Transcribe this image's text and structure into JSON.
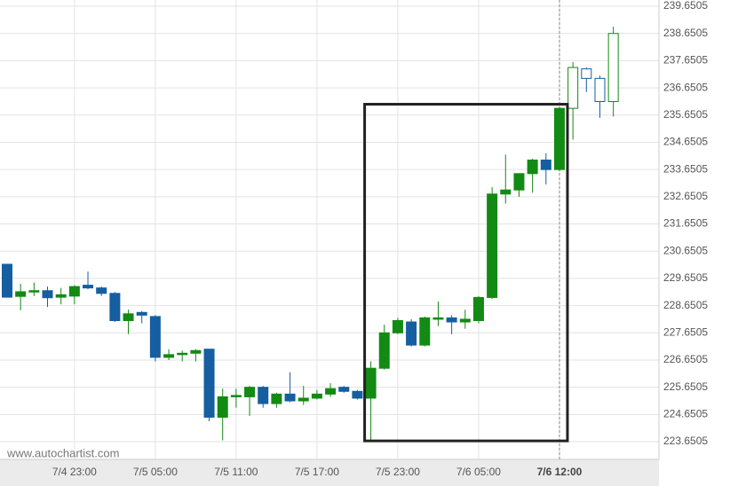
{
  "chart_data": {
    "type": "candlestick",
    "watermark": "www.autochartist.com",
    "categories": [
      null,
      null,
      null,
      null,
      null,
      "7/4 23:00",
      null,
      null,
      null,
      null,
      null,
      "7/5 05:00",
      null,
      null,
      null,
      null,
      null,
      "7/5 11:00",
      null,
      null,
      null,
      null,
      null,
      "7/5 17:00",
      null,
      null,
      null,
      null,
      null,
      "7/5 23:00",
      null,
      null,
      null,
      null,
      null,
      "7/6 05:00",
      null,
      null,
      null,
      null,
      null,
      "7/6 12:00",
      null,
      null,
      null,
      null
    ],
    "open": [
      230.17,
      228.99,
      229.15,
      229.2,
      228.96,
      229.0,
      229.4,
      229.3,
      229.1,
      228.1,
      228.4,
      228.25,
      226.75,
      226.85,
      226.9,
      227.05,
      224.55,
      225.3,
      225.3,
      225.65,
      225.05,
      225.4,
      225.15,
      225.25,
      225.4,
      225.65,
      225.5,
      225.25,
      226.35,
      227.65,
      228.05,
      227.2,
      228.15,
      228.2,
      228.05,
      228.1,
      228.95,
      232.75,
      232.9,
      233.5,
      234.0,
      233.65,
      235.9,
      237.35,
      237.0,
      236.15
    ],
    "high": [
      230.17,
      229.45,
      229.5,
      229.35,
      229.3,
      229.4,
      229.9,
      229.35,
      229.15,
      228.5,
      228.45,
      228.3,
      227.05,
      227.0,
      227.05,
      227.05,
      225.6,
      225.6,
      225.7,
      225.7,
      225.45,
      226.2,
      225.7,
      225.55,
      225.8,
      225.7,
      225.55,
      226.6,
      227.95,
      228.2,
      228.15,
      228.25,
      228.8,
      228.3,
      228.5,
      229.0,
      233.0,
      234.2,
      233.5,
      234.05,
      234.25,
      235.95,
      237.6,
      237.4,
      237.1,
      238.9
    ],
    "low": [
      228.96,
      228.48,
      229.0,
      228.6,
      228.7,
      228.7,
      229.25,
      229.0,
      228.05,
      227.6,
      228.0,
      226.6,
      226.65,
      226.6,
      226.6,
      224.4,
      223.7,
      224.9,
      224.6,
      224.9,
      224.9,
      225.1,
      225.0,
      225.2,
      225.3,
      225.45,
      225.2,
      223.7,
      226.3,
      227.6,
      227.15,
      227.15,
      227.9,
      227.6,
      227.8,
      228.0,
      228.9,
      232.4,
      232.65,
      232.8,
      233.1,
      233.6,
      234.75,
      236.5,
      235.55,
      235.6
    ],
    "close": [
      228.96,
      229.16,
      229.2,
      228.94,
      229.05,
      229.35,
      229.3,
      229.1,
      228.1,
      228.35,
      228.3,
      226.75,
      226.85,
      226.9,
      227.0,
      224.55,
      225.3,
      225.35,
      225.65,
      225.05,
      225.4,
      225.15,
      225.25,
      225.4,
      225.6,
      225.5,
      225.25,
      226.35,
      227.65,
      228.1,
      227.2,
      228.2,
      228.2,
      228.05,
      228.15,
      228.95,
      232.75,
      232.9,
      233.5,
      234.0,
      233.65,
      235.9,
      237.4,
      237.0,
      236.15,
      238.65
    ],
    "up_color": "#138a13",
    "down_color": "#155fa0",
    "hollow_after": "7/6 12:00",
    "box": {
      "start": 27,
      "end": 41,
      "top": 236.05,
      "bottom": 223.68
    },
    "ylim": [
      223.0,
      239.88
    ],
    "yticks": [
      223.6505,
      224.6505,
      225.6505,
      226.6505,
      227.6505,
      228.6505,
      229.6505,
      230.6505,
      231.6505,
      232.6505,
      233.6505,
      234.6505,
      235.6505,
      236.6505,
      237.6505,
      238.6505,
      239.6505
    ],
    "grid": true
  }
}
